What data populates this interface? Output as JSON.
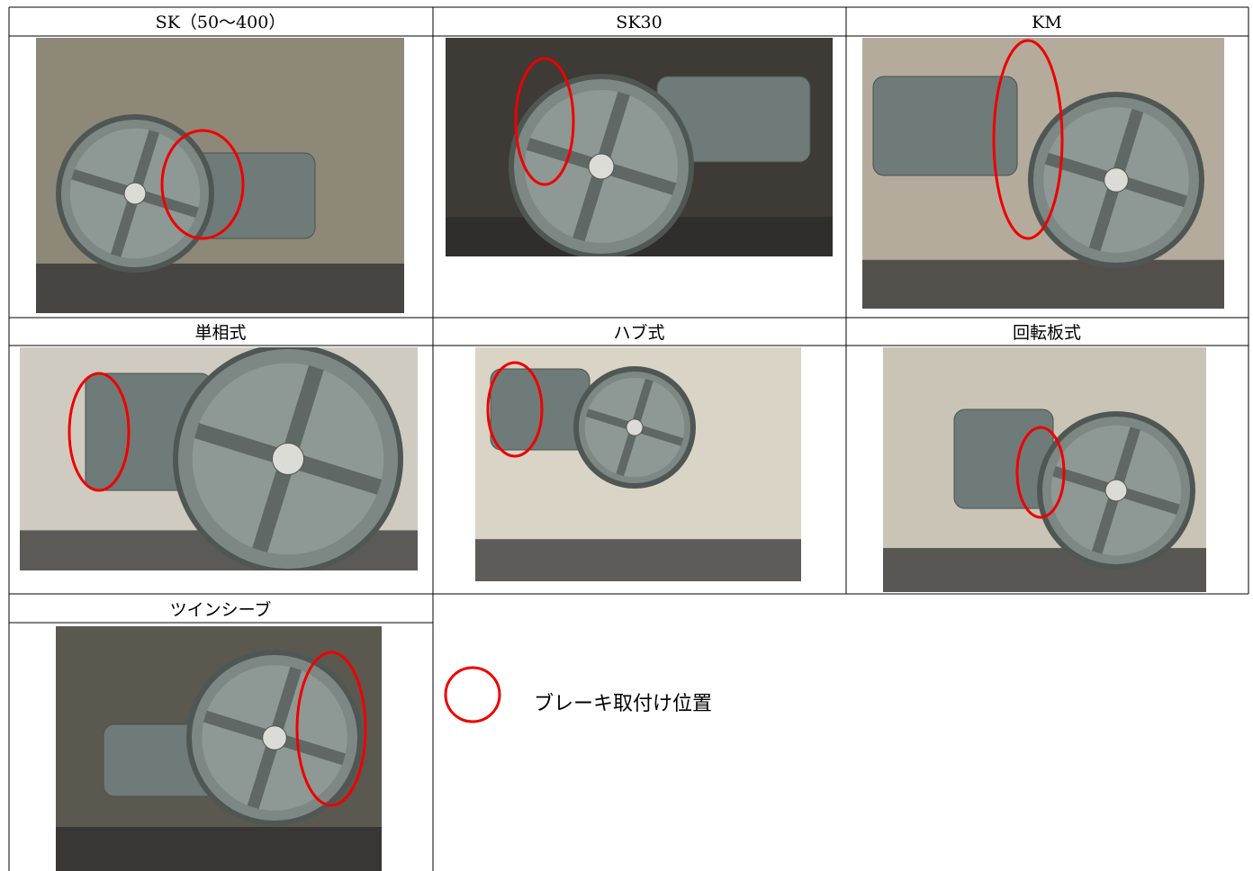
{
  "cells": [
    {
      "label": "SK（50～400）"
    },
    {
      "label": "SK30"
    },
    {
      "label": "KM"
    },
    {
      "label": "単相式"
    },
    {
      "label": "ハブ式"
    },
    {
      "label": "回転板式"
    },
    {
      "label": "ツインシーブ"
    }
  ],
  "legend": "ブレーキ取付け位置"
}
